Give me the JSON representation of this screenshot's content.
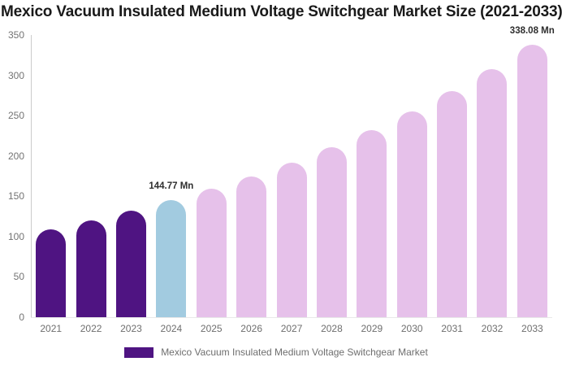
{
  "title": "Mexico Vacuum Insulated Medium Voltage Switchgear Market Size (2021-2033)",
  "chart_data": {
    "type": "bar",
    "title": "Mexico Vacuum Insulated Medium Voltage Switchgear Market Size (2021-2033)",
    "categories": [
      "2021",
      "2022",
      "2023",
      "2024",
      "2025",
      "2026",
      "2027",
      "2028",
      "2029",
      "2030",
      "2031",
      "2032",
      "2033"
    ],
    "values": [
      109.1,
      119.9,
      131.8,
      144.77,
      159.1,
      174.8,
      192.1,
      211.1,
      231.9,
      254.8,
      280.0,
      307.7,
      338.08
    ],
    "unit": "Mn",
    "xlabel": "",
    "ylabel": "",
    "ylim": [
      0,
      350
    ],
    "yticks": [
      0,
      50,
      100,
      150,
      200,
      250,
      300,
      350
    ],
    "grid": false,
    "legend_position": "bottom",
    "legend_entries": [
      "Mexico Vacuum Insulated Medium Voltage Switchgear Market"
    ],
    "annotations": [
      {
        "category": "2024",
        "text": "144.77 Mn"
      },
      {
        "category": "2033",
        "text": "338.08 Mn"
      }
    ],
    "bar_color_by_year": [
      "#4F1482",
      "#4F1482",
      "#4F1482",
      "#A2CBE0",
      "#E6C1EA",
      "#E6C1EA",
      "#E6C1EA",
      "#E6C1EA",
      "#E6C1EA",
      "#E6C1EA",
      "#E6C1EA",
      "#E6C1EA",
      "#E6C1EA"
    ]
  },
  "colors": {
    "historical_bar": "#4F1482",
    "base_year_bar": "#A2CBE0",
    "forecast_bar": "#E6C1EA",
    "title_text": "#1a1a1a",
    "axis_line": "#cccccc",
    "tick_label": "#737373",
    "annotation_text": "#2e2e2e",
    "legend_text": "#6e6e6e"
  },
  "legend": {
    "label": "Mexico Vacuum Insulated Medium Voltage Switchgear Market"
  }
}
